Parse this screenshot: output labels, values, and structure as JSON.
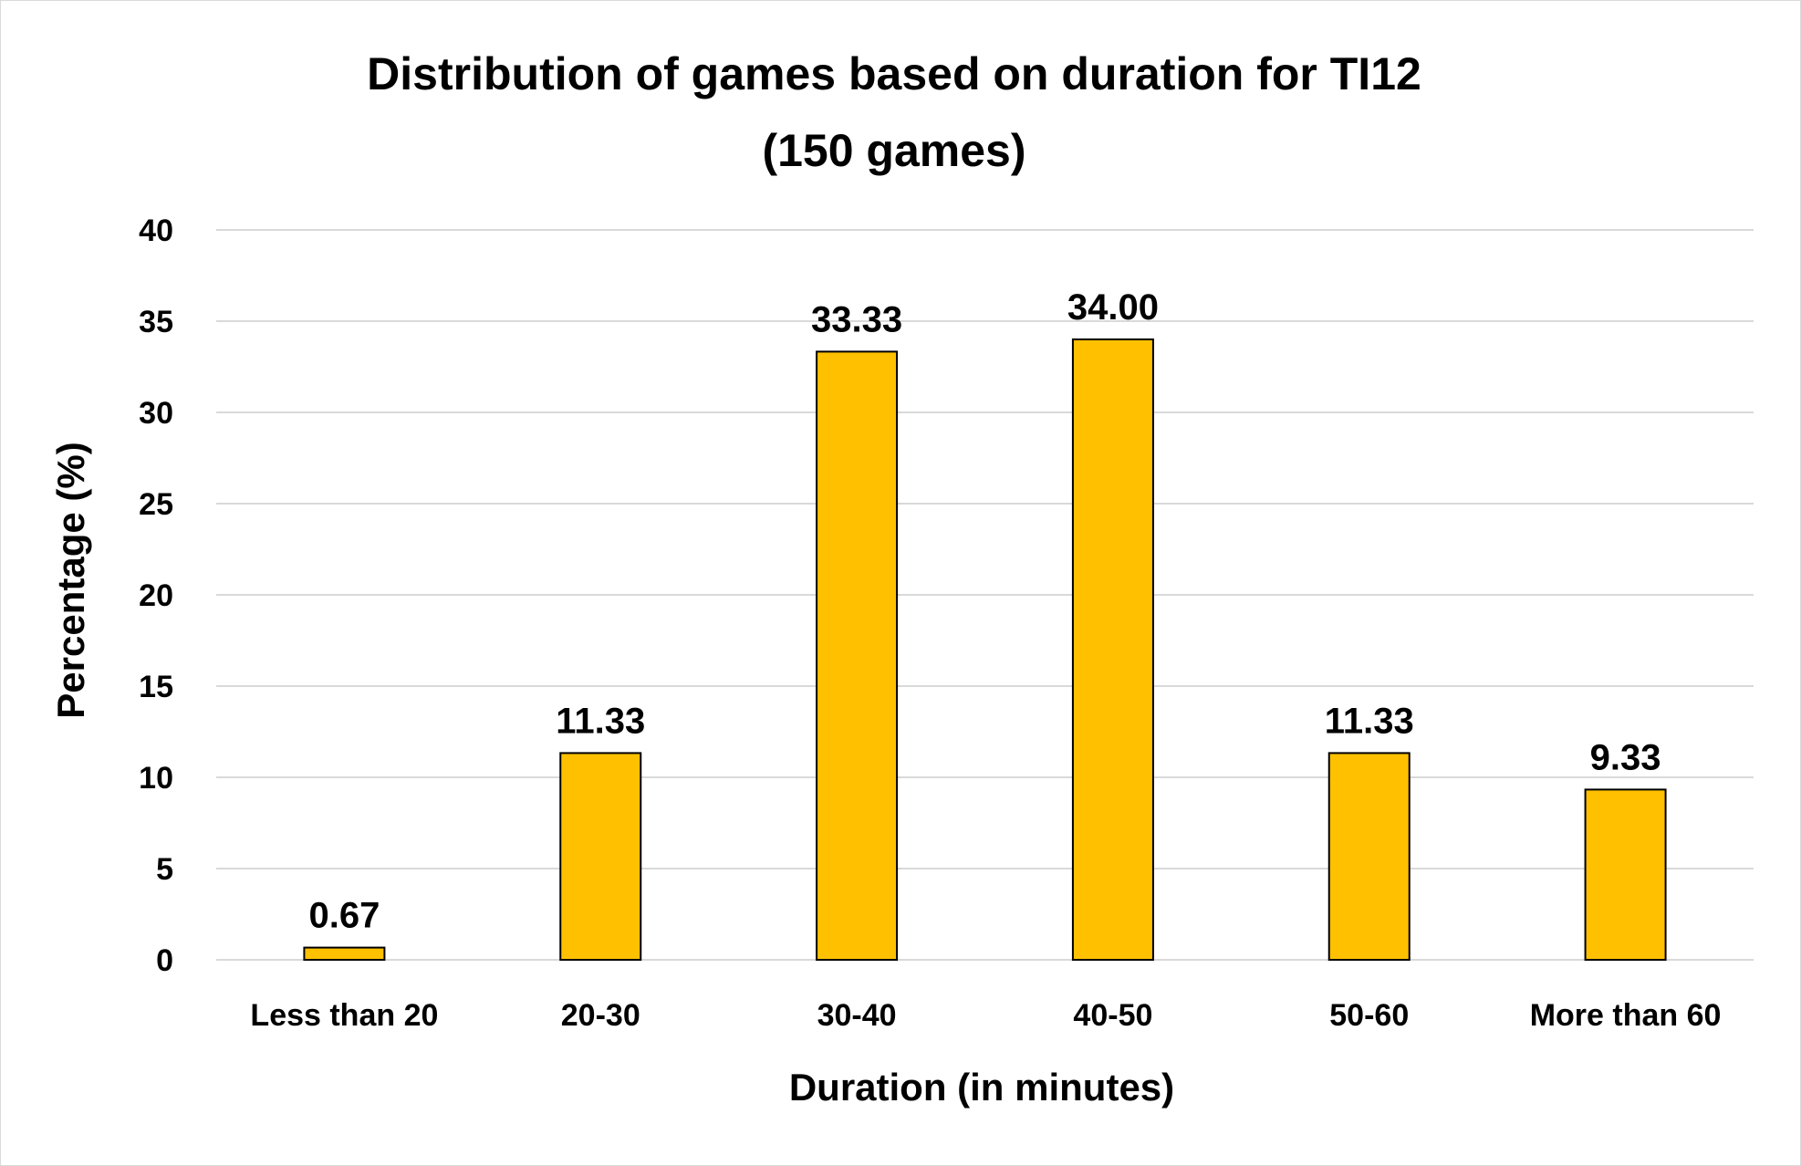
{
  "chart_data": {
    "type": "bar",
    "title_line1": "Distribution of games based on duration for TI12",
    "title_line2": "(150 games)",
    "xlabel": "Duration (in minutes)",
    "ylabel": "Percentage (%)",
    "categories": [
      "Less than 20",
      "20-30",
      "30-40",
      "40-50",
      "50-60",
      "More than 60"
    ],
    "values": [
      0.67,
      11.33,
      33.33,
      34.0,
      11.33,
      9.33
    ],
    "value_labels": [
      "0.67",
      "11.33",
      "33.33",
      "34.00",
      "11.33",
      "9.33"
    ],
    "ylim": [
      0,
      40
    ],
    "yticks": [
      0,
      5,
      10,
      15,
      20,
      25,
      30,
      35,
      40
    ],
    "grid": true,
    "legend": "none",
    "bar_color": "#ffc000",
    "bar_outline_color": "#000000"
  }
}
